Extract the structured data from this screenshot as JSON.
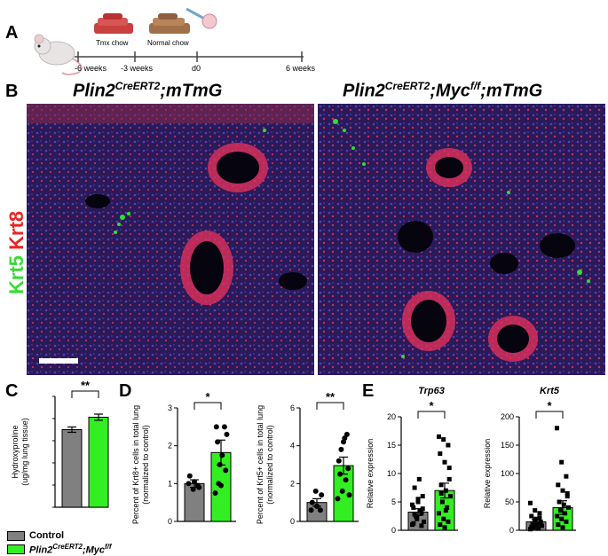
{
  "panels": {
    "a": "A",
    "b": "B",
    "c": "C",
    "d": "D",
    "e": "E"
  },
  "timeline": {
    "labels": [
      "-6 weeks",
      "-3 weeks",
      "d0",
      "6 weeks"
    ],
    "tmx_chow": "Tmx chow",
    "normal_chow": "Normal chow"
  },
  "microscopy": {
    "left_title_base": "Plin2",
    "left_title_sup": "CreERT2",
    "left_title_tail": ";mTmG",
    "right_title_base": "Plin2",
    "right_title_sup": "CreERT2",
    "right_title_mid": ";Myc",
    "right_title_sup2": "f/f",
    "right_title_tail": ";mTmG",
    "stain_krt5": "Krt5",
    "stain_krt8": "Krt8",
    "colors": {
      "krt5": "#33dd33",
      "krt8": "#ee2222"
    }
  },
  "legend": {
    "control": "Control",
    "mutant_base": "Plin2",
    "mutant_sup": "CreERT2",
    "mutant_mid": ";Myc",
    "mutant_sup2": "f/f",
    "colors": {
      "control": "#808080",
      "mutant": "#33ee22"
    }
  },
  "chart_data": [
    {
      "type": "bar",
      "panel": "C",
      "ylabel_line1": "Hydroxyproline",
      "ylabel_line2": "(ug/mg lung tissue)",
      "categories": [
        "Control",
        "Plin2CreERT2;Mycf/f"
      ],
      "values": [
        17.5,
        20.3
      ],
      "errors": [
        0.6,
        0.7
      ],
      "ylim": [
        0,
        25
      ],
      "significance": "**"
    },
    {
      "type": "bar",
      "panel": "D1",
      "ylabel_line1": "Percent of Krt8+ cells in total lung",
      "ylabel_line2": "(normalized to control)",
      "categories": [
        "Control",
        "Plin2CreERT2;Mycf/f"
      ],
      "values": [
        1.0,
        1.82
      ],
      "errors": [
        0.1,
        0.33
      ],
      "yticks": [
        0,
        1,
        2,
        3
      ],
      "ylim": [
        0,
        3
      ],
      "significance": "*",
      "points": [
        [
          1.0,
          0.85,
          0.95,
          1.2,
          1.05,
          0.9
        ],
        [
          0.75,
          1.5,
          2.5,
          2.5,
          0.95,
          1.35,
          2.1,
          1.75,
          2.3,
          1.0
        ]
      ]
    },
    {
      "type": "bar",
      "panel": "D2",
      "ylabel_line1": "Percent of Krt5+ cells in total lung",
      "ylabel_line2": "(normalized to control)",
      "categories": [
        "Control",
        "Plin2CreERT2;Mycf/f"
      ],
      "values": [
        1.0,
        2.95
      ],
      "errors": [
        0.2,
        0.45
      ],
      "yticks": [
        0,
        2,
        4,
        6
      ],
      "ylim": [
        0,
        6
      ],
      "significance": "**",
      "points": [
        [
          0.6,
          1.6,
          0.6,
          1.0,
          0.8,
          1.4
        ],
        [
          1.2,
          1.6,
          4.6,
          3.2,
          4.2,
          2.8,
          2.5,
          4.4,
          1.4,
          3.8,
          2.2
        ]
      ]
    },
    {
      "type": "bar",
      "panel": "E1",
      "title": "Trp63",
      "ylabel": "Relative expression",
      "categories": [
        "Control",
        "Plin2CreERT2;Mycf/f"
      ],
      "values": [
        3.2,
        7.0
      ],
      "errors": [
        0.6,
        1.3
      ],
      "yticks": [
        0,
        5,
        10,
        15,
        20
      ],
      "ylim": [
        0,
        20
      ],
      "significance": "*",
      "points": [
        [
          1.0,
          2.0,
          3.0,
          4.0,
          5.0,
          6.0,
          7.5,
          9.0,
          1.5,
          2.5,
          3.5,
          4.5,
          2.2,
          0.8,
          1.2,
          5.5,
          3.8,
          2.8
        ],
        [
          16.5,
          16.0,
          15.0,
          13.5,
          12.0,
          9.0,
          8.0,
          7.0,
          6.0,
          5.0,
          4.0,
          3.0,
          2.0,
          1.5,
          1.0,
          0.5,
          11.0,
          6.5,
          3.5
        ]
      ]
    },
    {
      "type": "bar",
      "panel": "E2",
      "title": "Krt5",
      "ylabel": "Relative expression",
      "categories": [
        "Control",
        "Plin2CreERT2;Mycf/f"
      ],
      "values": [
        15,
        40
      ],
      "errors": [
        4,
        12
      ],
      "yticks": [
        0,
        50,
        100,
        150,
        200
      ],
      "ylim": [
        0,
        200
      ],
      "significance": "*",
      "points": [
        [
          48,
          35,
          30,
          25,
          20,
          15,
          12,
          10,
          8,
          5,
          3,
          2,
          18,
          22,
          6
        ],
        [
          180,
          120,
          95,
          80,
          70,
          60,
          50,
          45,
          40,
          35,
          30,
          25,
          20,
          15,
          10,
          5,
          65
        ]
      ]
    }
  ],
  "scale_bar_color": "#ffffff"
}
